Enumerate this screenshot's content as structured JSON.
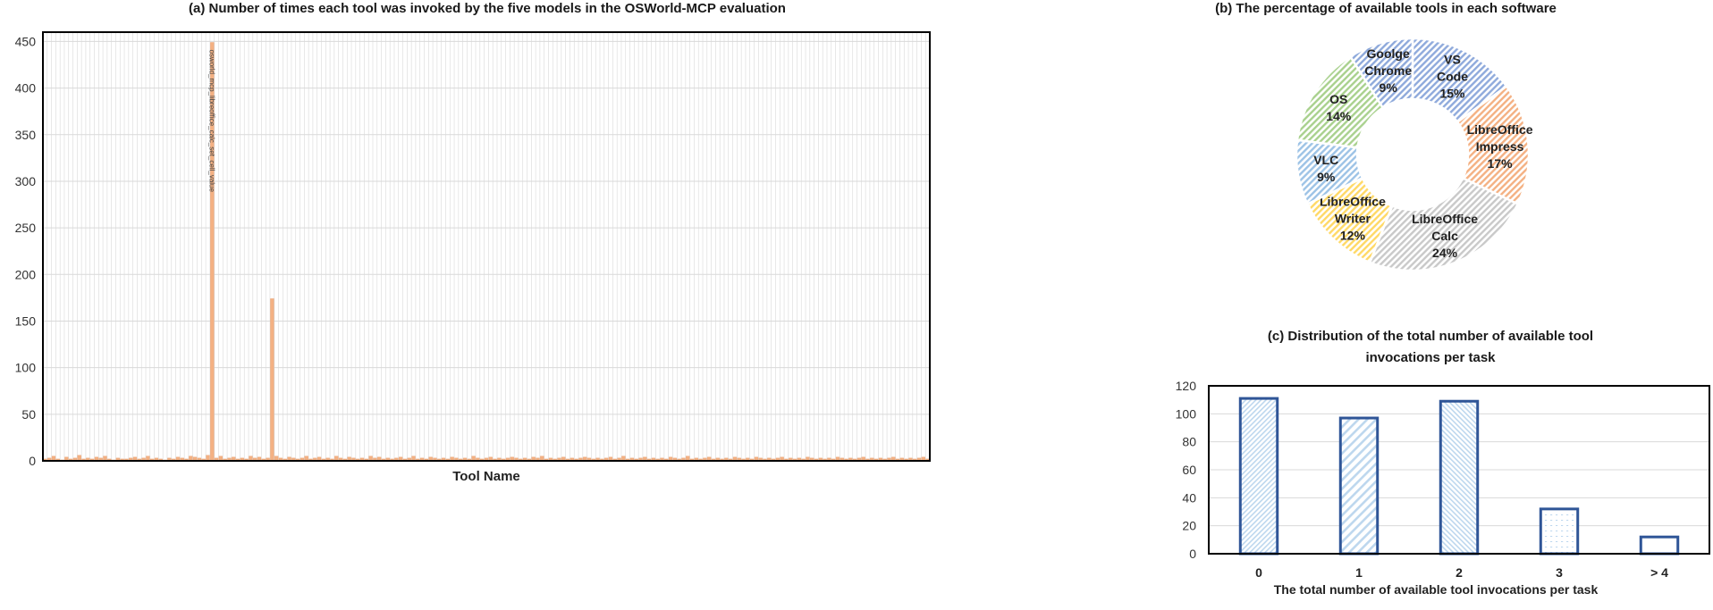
{
  "panels": {
    "a_title": "(a) Number of times each tool was invoked by the five models in the OSWorld-MCP evaluation",
    "b_title": "(b) The percentage of available tools in each software",
    "c_title_line1": "(c) Distribution of the total number of available tool",
    "c_title_line2": "invocations per task"
  },
  "colors": {
    "bar_orange": "#f4b183",
    "bar_orange_dark": "#e8a070",
    "grid": "#d9d9d9",
    "frame": "#000000",
    "c_bar_stroke": "#2f5597",
    "c_bar_fill": "#bdd7ee"
  },
  "chart_data": [
    {
      "type": "bar",
      "title": "(a) Number of times each tool was invoked by the five models in the OSWorld-MCP evaluation",
      "xlabel": "Tool Name",
      "ylabel": "",
      "ylim": [
        0,
        460
      ],
      "yticks": [
        0,
        50,
        100,
        150,
        200,
        250,
        300,
        350,
        400,
        450
      ],
      "grid": true,
      "categories_shown": [
        "oswold_mcp_libreoffice_calc_set_cell_value"
      ],
      "highlight": {
        "label": "osworld_mcp_libreoffice_calc_set_cell_value",
        "value": 449
      },
      "values": [
        2,
        3,
        5,
        2,
        1,
        4,
        2,
        3,
        6,
        2,
        3,
        2,
        4,
        3,
        5,
        2,
        1,
        3,
        2,
        2,
        3,
        4,
        2,
        3,
        5,
        2,
        3,
        2,
        1,
        3,
        2,
        4,
        3,
        2,
        5,
        4,
        3,
        2,
        6,
        449,
        3,
        5,
        2,
        3,
        4,
        2,
        3,
        2,
        5,
        3,
        4,
        2,
        3,
        174,
        5,
        3,
        2,
        4,
        3,
        2,
        3,
        5,
        2,
        3,
        4,
        2,
        3,
        2,
        5,
        3,
        2,
        4,
        3,
        2,
        3,
        2,
        5,
        3,
        4,
        2,
        3,
        2,
        3,
        4,
        2,
        3,
        5,
        2,
        3,
        2,
        4,
        3,
        2,
        3,
        2,
        4,
        3,
        2,
        3,
        2,
        5,
        3,
        2,
        3,
        4,
        2,
        3,
        2,
        3,
        4,
        3,
        2,
        3,
        2,
        4,
        3,
        5,
        2,
        3,
        2,
        3,
        4,
        2,
        3,
        2,
        3,
        4,
        3,
        2,
        3,
        2,
        3,
        4,
        2,
        3,
        5,
        2,
        3,
        2,
        3,
        4,
        2,
        3,
        2,
        3,
        2,
        4,
        3,
        2,
        3,
        5,
        2,
        3,
        2,
        3,
        4,
        2,
        3,
        2,
        3,
        2,
        4,
        3,
        2,
        3,
        2,
        4,
        3,
        2,
        3,
        2,
        3,
        4,
        2,
        3,
        2,
        3,
        2,
        4,
        3,
        2,
        3,
        2,
        3,
        2,
        4,
        3,
        2,
        3,
        2,
        3,
        4,
        2,
        3,
        2,
        3,
        2,
        3,
        4,
        2,
        3,
        2,
        3,
        2,
        3,
        4,
        2
      ]
    },
    {
      "type": "pie",
      "title": "(b) The percentage of available tools in each software",
      "slices": [
        {
          "label": "VS Code",
          "value": 15,
          "text": "15%",
          "color": "#8faadc"
        },
        {
          "label": "LibreOffice Impress",
          "value": 17,
          "text": "17%",
          "color": "#f4b183"
        },
        {
          "label": "LibreOffice Calc",
          "value": 24,
          "text": "24%",
          "color": "#c9c9c9"
        },
        {
          "label": "LibreOffice Writer",
          "value": 12,
          "text": "12%",
          "color": "#ffd966"
        },
        {
          "label": "VLC",
          "value": 9,
          "text": "9%",
          "color": "#9dc3e6"
        },
        {
          "label": "OS",
          "value": 14,
          "text": "14%",
          "color": "#a9d18e"
        },
        {
          "label": "Goolge Chrome",
          "value": 9,
          "text": "9%",
          "color": "#8ea9db"
        }
      ]
    },
    {
      "type": "bar",
      "title": "(c) Distribution of the total number of available tool invocations per task",
      "xlabel": "The total number of available tool invocations per task",
      "categories": [
        "0",
        "1",
        "2",
        "3",
        "> 4"
      ],
      "values": [
        111,
        97,
        109,
        32,
        12
      ],
      "ylim": [
        0,
        120
      ],
      "yticks": [
        0,
        20,
        40,
        60,
        80,
        100,
        120
      ],
      "grid": true
    }
  ]
}
